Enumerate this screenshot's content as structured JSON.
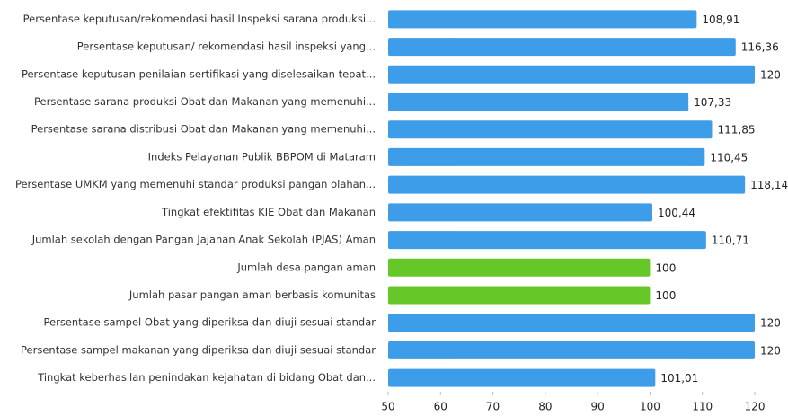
{
  "chart_data": {
    "type": "bar",
    "orientation": "horizontal",
    "categories": [
      "Persentase keputusan/rekomendasi hasil Inspeksi sarana produksi...",
      "Persentase keputusan/ rekomendasi hasil inspeksi yang...",
      "Persentase keputusan penilaian sertifikasi yang diselesaikan tepat...",
      "Persentase sarana produksi Obat dan Makanan yang memenuhi...",
      "Persentase sarana distribusi Obat dan Makanan yang memenuhi...",
      "Indeks Pelayanan Publik BBPOM di Mataram",
      "Persentase UMKM yang memenuhi standar produksi pangan olahan...",
      "Tingkat efektifitas KIE Obat dan Makanan",
      "Jumlah sekolah dengan Pangan Jajanan Anak Sekolah (PJAS) Aman",
      "Jumlah desa pangan aman",
      "Jumlah pasar pangan aman berbasis komunitas",
      "Persentase sampel Obat yang diperiksa dan diuji sesuai standar",
      "Persentase sampel makanan yang diperiksa dan diuji sesuai standar",
      "Tingkat keberhasilan penindakan kejahatan di bidang Obat dan..."
    ],
    "values": [
      108.91,
      116.36,
      120,
      107.33,
      111.85,
      110.45,
      118.14,
      100.44,
      110.71,
      100,
      100,
      120,
      120,
      101.01
    ],
    "value_labels": [
      "108,91",
      "116,36",
      "120",
      "107,33",
      "111,85",
      "110,45",
      "118,14",
      "100,44",
      "110,71",
      "100",
      "100",
      "120",
      "120",
      "101,01"
    ],
    "colors": [
      "#3d9de9",
      "#3d9de9",
      "#3d9de9",
      "#3d9de9",
      "#3d9de9",
      "#3d9de9",
      "#3d9de9",
      "#3d9de9",
      "#3d9de9",
      "#66c828",
      "#66c828",
      "#3d9de9",
      "#3d9de9",
      "#3d9de9"
    ],
    "xlim": [
      50,
      120
    ],
    "xticks": [
      50,
      60,
      70,
      80,
      90,
      100,
      110,
      120
    ]
  }
}
